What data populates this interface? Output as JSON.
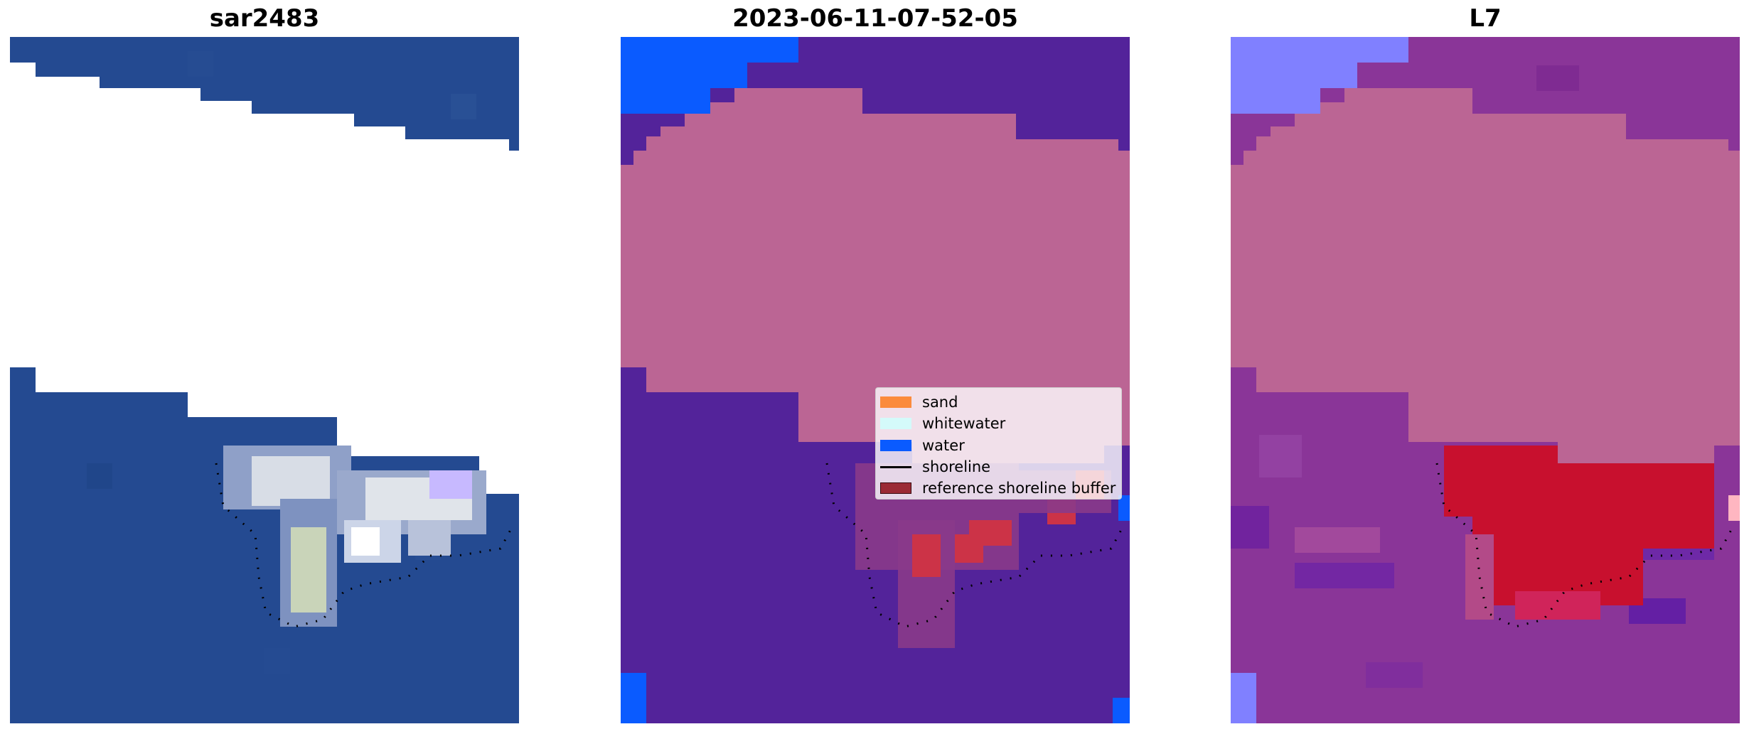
{
  "panels": [
    {
      "title": "sar2483"
    },
    {
      "title": "2023-06-11-07-52-05"
    },
    {
      "title": "L7"
    }
  ],
  "legend": {
    "items": [
      {
        "label": "sand",
        "color": "#fb8b3c"
      },
      {
        "label": "whitewater",
        "color": "#d4fafa"
      },
      {
        "label": "water",
        "color": "#0a5bff"
      },
      {
        "label": "shoreline",
        "color": "#000000"
      },
      {
        "label": "reference shoreline buffer",
        "color": "#9b2a35"
      }
    ]
  },
  "colors": {
    "satellite_water": "#244a91",
    "class_water_overlay": "#53239a",
    "water_blue": "#0a5bff",
    "cloud_mask": "#bb6594",
    "buffer_red": "#cc3347",
    "index_purple": "#8a3598",
    "index_red": "#c8102e",
    "index_light": "#8080ff"
  }
}
